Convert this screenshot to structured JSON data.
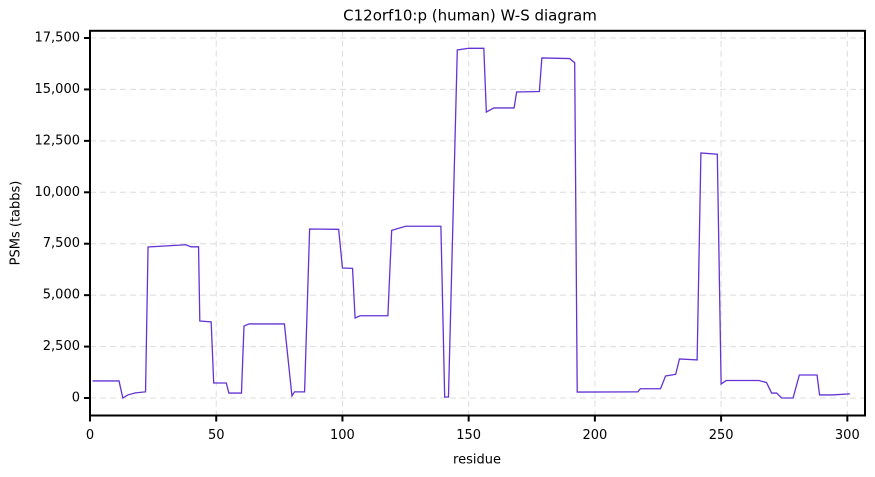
{
  "chart_data": {
    "type": "line",
    "title": "C12orf10:p (human) W-S diagram",
    "xlabel": "residue",
    "ylabel": "PSMs (tabbs)",
    "x": [
      1,
      11.5,
      13,
      15,
      18,
      22,
      23,
      38,
      40,
      43,
      43.5,
      48,
      49,
      54,
      55,
      60,
      61,
      63,
      77,
      80,
      81,
      85,
      87,
      98.5,
      100,
      104,
      105,
      107,
      118,
      119.5,
      125,
      139,
      140.5,
      142,
      145.5,
      150,
      156,
      157,
      160,
      168,
      169,
      178,
      179,
      190,
      192,
      193,
      217,
      218,
      226,
      228,
      232,
      233.5,
      240.5,
      242,
      248.5,
      250,
      252,
      265,
      268,
      270,
      272,
      274,
      278.5,
      281,
      288,
      289,
      294,
      301
    ],
    "series": [
      {
        "name": "PSMs",
        "color": "#6433d2",
        "values": [
          830,
          830,
          0,
          150,
          250,
          300,
          7340,
          7450,
          7350,
          7350,
          3740,
          3700,
          730,
          730,
          240,
          240,
          3500,
          3600,
          3600,
          100,
          300,
          300,
          8215,
          8200,
          6320,
          6300,
          3890,
          4000,
          4000,
          8150,
          8350,
          8350,
          50,
          50,
          16920,
          17000,
          17000,
          13900,
          14100,
          14100,
          14875,
          14900,
          16530,
          16500,
          16300,
          290,
          300,
          450,
          450,
          1070,
          1150,
          1900,
          1850,
          11910,
          11850,
          680,
          850,
          850,
          750,
          240,
          240,
          0,
          0,
          1120,
          1120,
          150,
          150,
          200
        ]
      }
    ],
    "xlim": [
      0,
      307
    ],
    "ylim": [
      -850,
      17850
    ],
    "xticks": [
      0,
      50,
      100,
      150,
      200,
      250,
      300
    ],
    "yticks": [
      0,
      {
        "value": 2500,
        "label": "2,500"
      },
      {
        "value": 5000,
        "label": "5,000"
      },
      {
        "value": 7500,
        "label": "7,500"
      },
      {
        "value": 10000,
        "label": "10,000"
      },
      {
        "value": 12500,
        "label": "12,500"
      },
      {
        "value": 15000,
        "label": "15,000"
      },
      {
        "value": 17500,
        "label": "17,500"
      }
    ],
    "grid": true
  }
}
